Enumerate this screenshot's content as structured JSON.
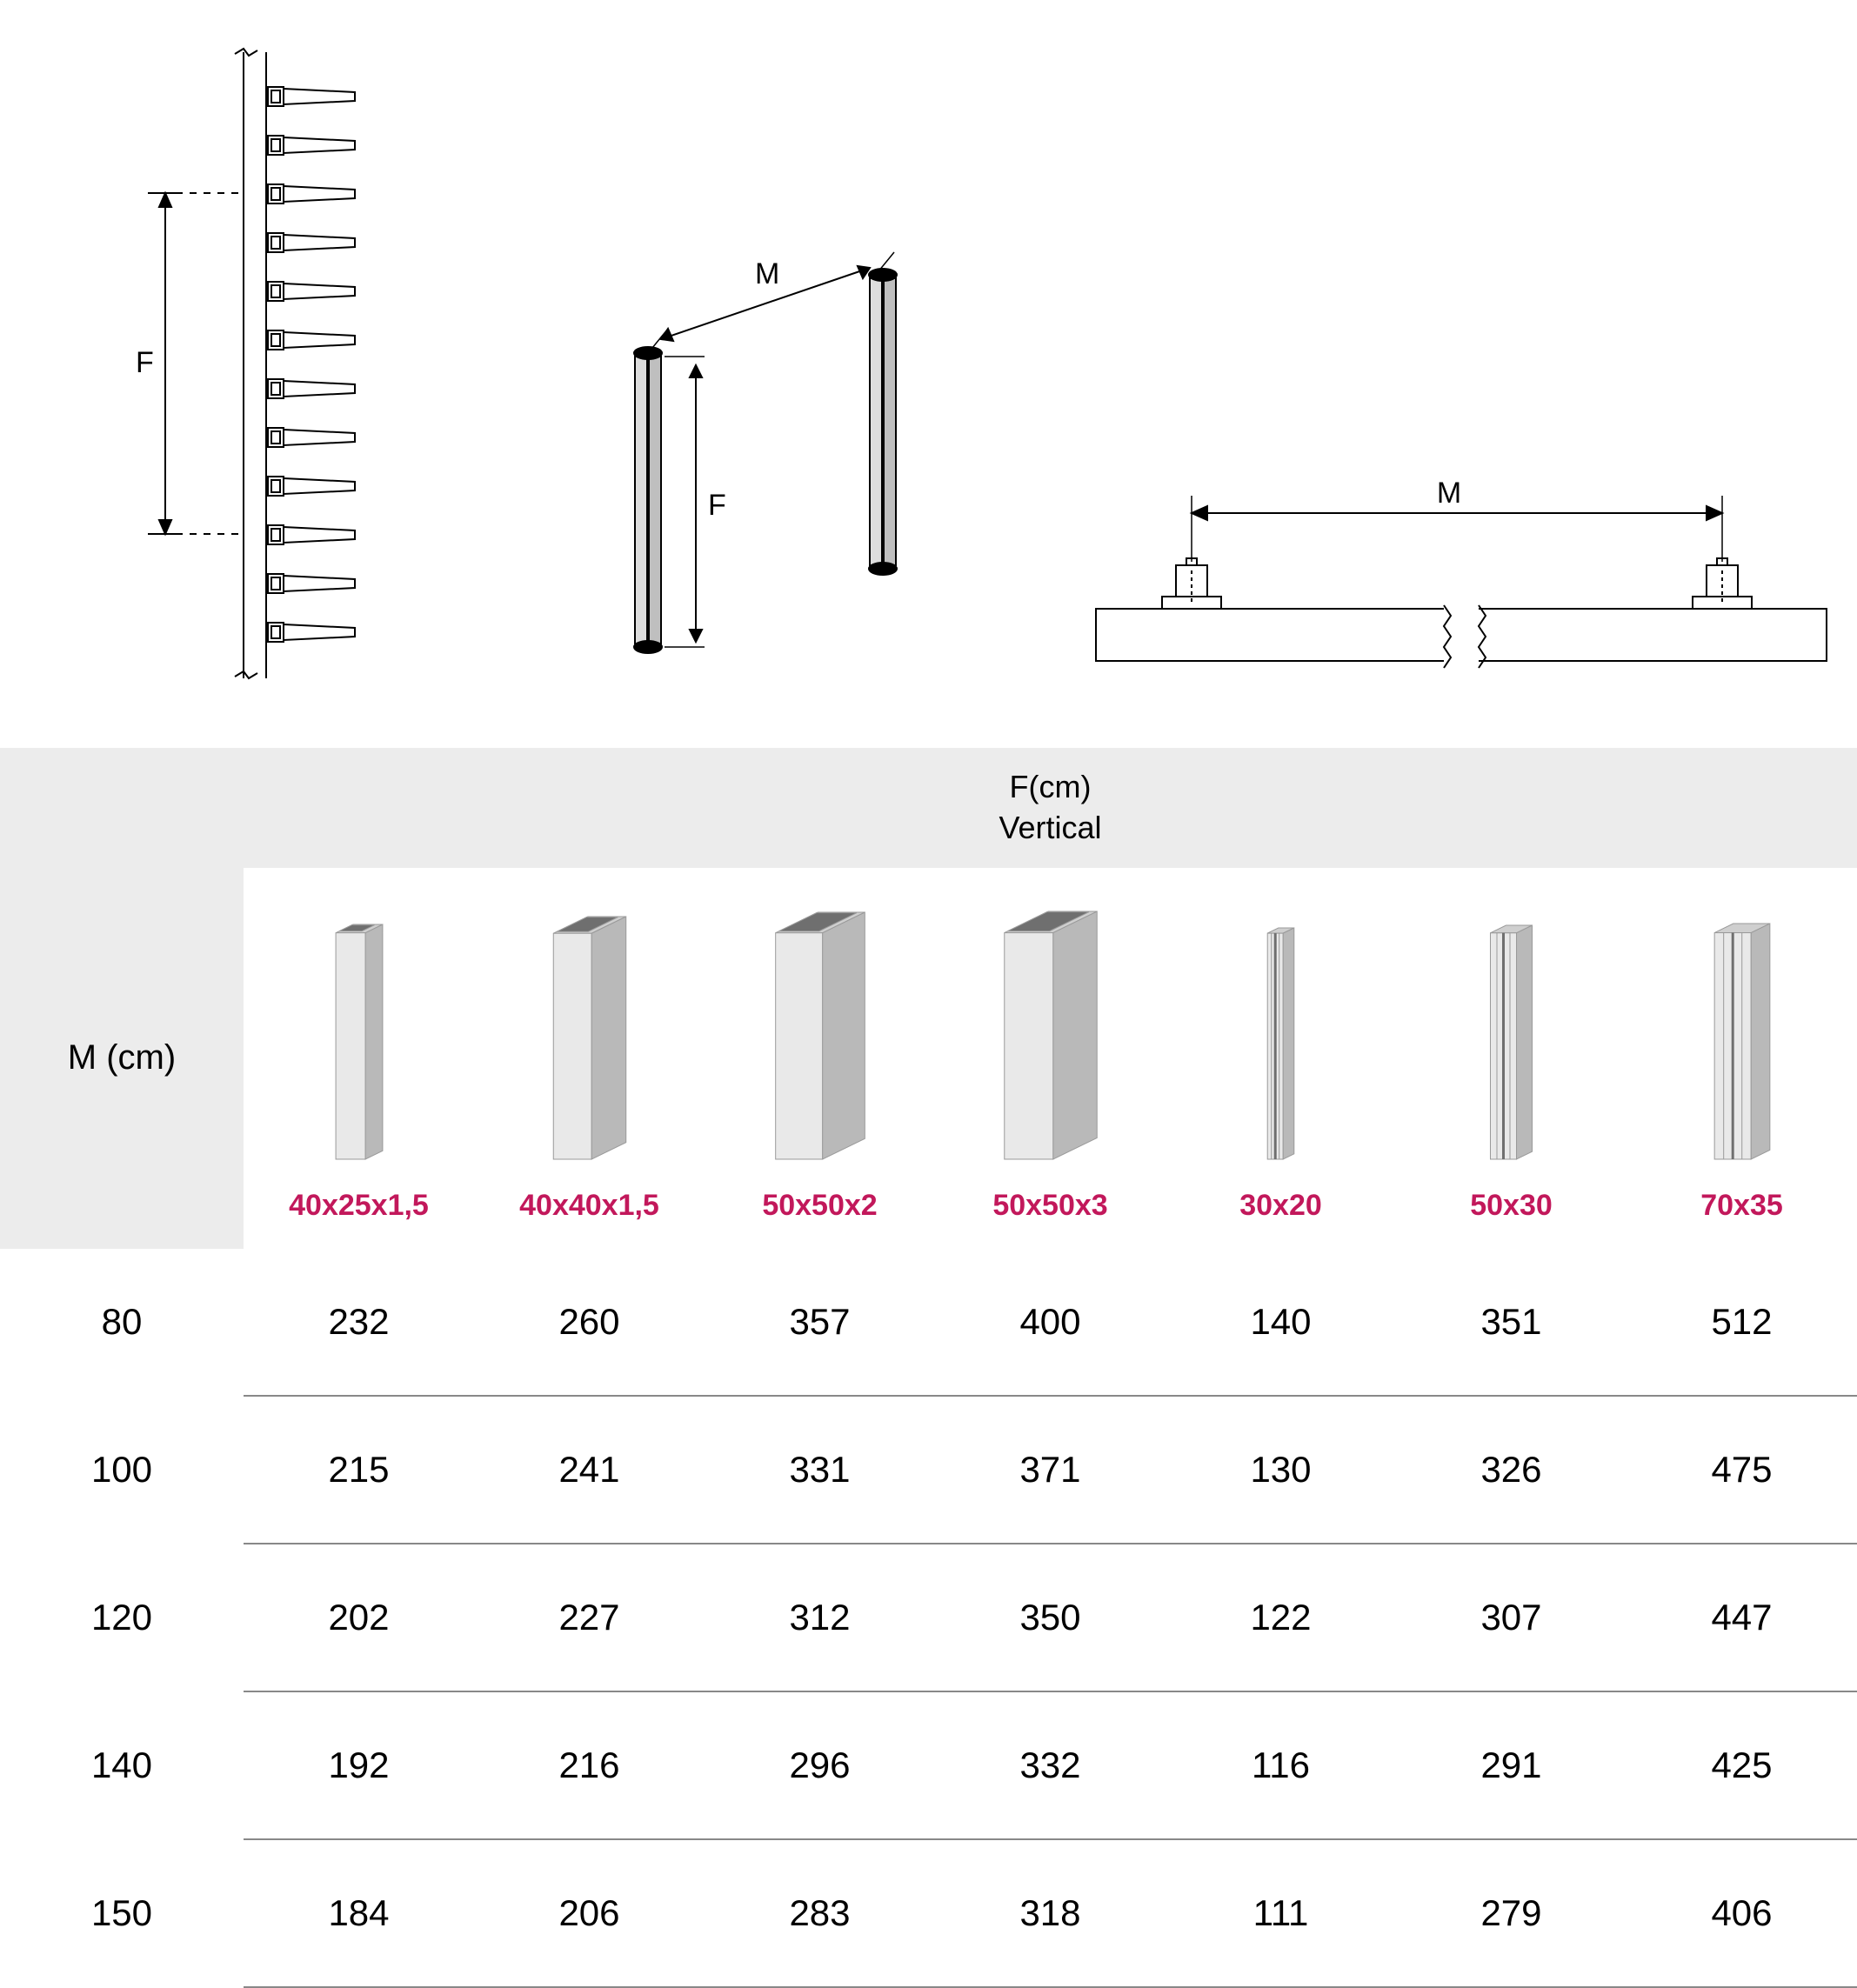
{
  "diagrams": {
    "labelF": "F",
    "labelM": "M"
  },
  "table": {
    "headerTitleLine1": "F(cm)",
    "headerTitleLine2": "Vertical",
    "mHeader": "M (cm)",
    "labelColor": "#c2185b",
    "profiles": [
      {
        "label": "40x25x1,5",
        "w": 34,
        "d": 22,
        "open": true,
        "slot": false
      },
      {
        "label": "40x40x1,5",
        "w": 44,
        "d": 44,
        "open": true,
        "slot": false
      },
      {
        "label": "50x50x2",
        "w": 54,
        "d": 54,
        "open": true,
        "slot": false
      },
      {
        "label": "50x50x3",
        "w": 56,
        "d": 56,
        "open": true,
        "slot": false
      },
      {
        "label": "30x20",
        "w": 18,
        "d": 14,
        "open": false,
        "slot": true
      },
      {
        "label": "50x30",
        "w": 30,
        "d": 20,
        "open": false,
        "slot": true
      },
      {
        "label": "70x35",
        "w": 42,
        "d": 24,
        "open": false,
        "slot": true
      }
    ],
    "rows": [
      {
        "m": "80",
        "v": [
          "232",
          "260",
          "357",
          "400",
          "140",
          "351",
          "512"
        ]
      },
      {
        "m": "100",
        "v": [
          "215",
          "241",
          "331",
          "371",
          "130",
          "326",
          "475"
        ]
      },
      {
        "m": "120",
        "v": [
          "202",
          "227",
          "312",
          "350",
          "122",
          "307",
          "447"
        ]
      },
      {
        "m": "140",
        "v": [
          "192",
          "216",
          "296",
          "332",
          "116",
          "291",
          "425"
        ]
      },
      {
        "m": "150",
        "v": [
          "184",
          "206",
          "283",
          "318",
          "111",
          "279",
          "406"
        ]
      }
    ]
  },
  "style": {
    "profileHeight": 260,
    "axoAngle": 26,
    "fillLight": "#e9e9e9",
    "fillMed": "#cfcfcf",
    "fillDark": "#b9b9b9",
    "stroke": "#9a9a9a"
  }
}
